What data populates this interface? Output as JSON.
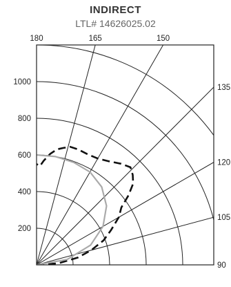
{
  "header": {
    "title": "INDIRECT",
    "subtitle": "LTL# 14626025.02"
  },
  "chart_data": {
    "type": "polar",
    "angle_unit": "degrees",
    "radial_max": 1200,
    "radial_gridlines": [
      200,
      400,
      600,
      800,
      1000,
      1200
    ],
    "radial_tick_labels": [
      "200",
      "400",
      "600",
      "800",
      "1000"
    ],
    "angle_gridlines": [
      90,
      105,
      120,
      135,
      150,
      165,
      180
    ],
    "top_angle_labels": [
      "180",
      "165",
      "150"
    ],
    "right_angle_labels": [
      "135",
      "120",
      "105",
      "90"
    ],
    "colors": {
      "grid": "#222222",
      "dashed_series": "#111111",
      "solid_series": "#aaaaaa"
    },
    "series": [
      {
        "style": "dashed",
        "points": [
          [
            90,
            0
          ],
          [
            94,
            120
          ],
          [
            100,
            230
          ],
          [
            105,
            310
          ],
          [
            110,
            390
          ],
          [
            115,
            450
          ],
          [
            120,
            520
          ],
          [
            124,
            560
          ],
          [
            127,
            630
          ],
          [
            130,
            690
          ],
          [
            133,
            720
          ],
          [
            136,
            740
          ],
          [
            140,
            720
          ],
          [
            145,
            690
          ],
          [
            150,
            670
          ],
          [
            155,
            665
          ],
          [
            160,
            670
          ],
          [
            164,
            670
          ],
          [
            167,
            655
          ],
          [
            170,
            640
          ],
          [
            173,
            610
          ],
          [
            176,
            570
          ],
          [
            178,
            540
          ],
          [
            180,
            550
          ]
        ]
      },
      {
        "style": "solid",
        "points": [
          [
            90,
            0
          ],
          [
            100,
            170
          ],
          [
            110,
            315
          ],
          [
            120,
            420
          ],
          [
            130,
            500
          ],
          [
            140,
            555
          ],
          [
            150,
            585
          ],
          [
            160,
            595
          ],
          [
            170,
            600
          ],
          [
            180,
            600
          ]
        ]
      }
    ]
  }
}
